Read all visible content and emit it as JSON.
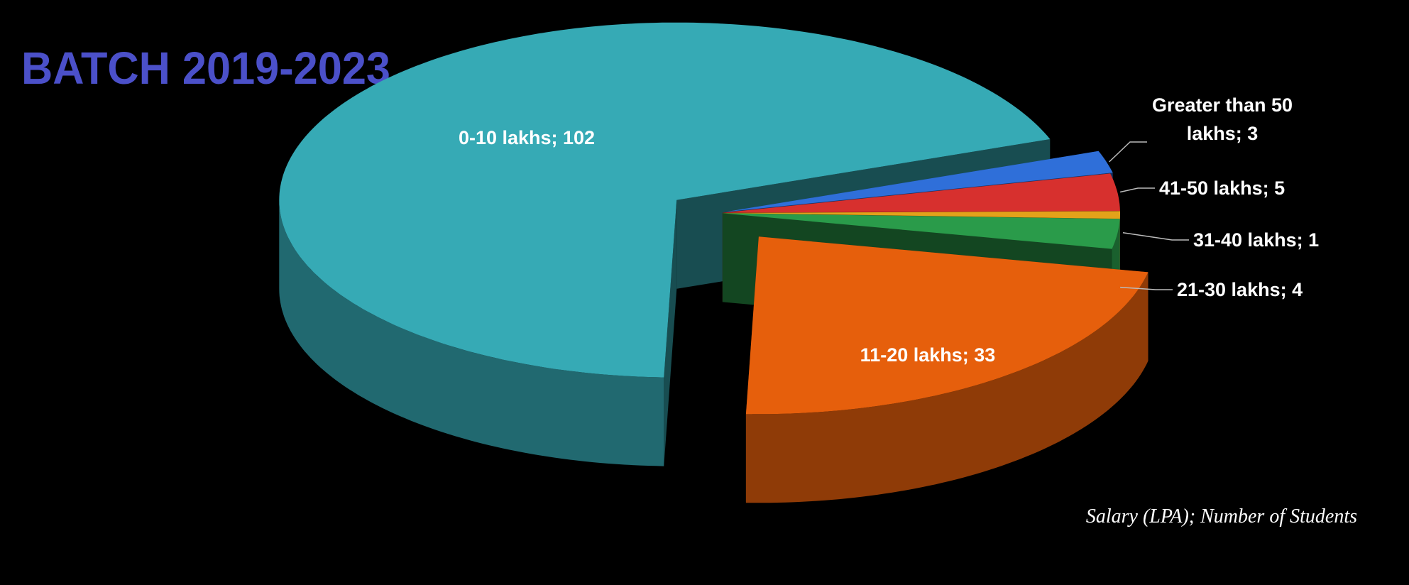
{
  "chart_data": {
    "type": "pie",
    "title": "BATCH 2019-2023",
    "note": "Salary (LPA);  Number of Students",
    "values": [
      102,
      33,
      4,
      1,
      5,
      3
    ],
    "value_labels": [
      "0-10 lakhs; 102",
      "11-20 lakhs; 33",
      "21-30 lakhs; 4",
      "31-40 lakhs; 1",
      "41-50 lakhs; 5",
      "Greater than 50 lakhs; 3"
    ],
    "colors": [
      "#36aab5",
      "#e65f0c",
      "#2a9b4a",
      "#e3a21a",
      "#d7302e",
      "#2f6fd9"
    ]
  }
}
